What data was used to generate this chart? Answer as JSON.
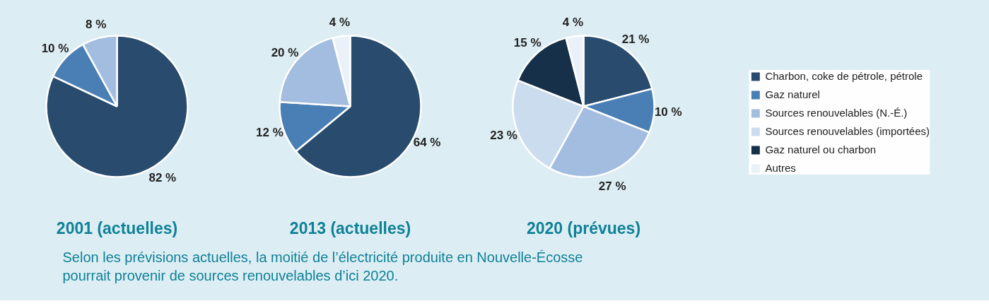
{
  "chart_data": [
    {
      "type": "pie",
      "title": "2001 (actuelles)",
      "categories": [
        null,
        null,
        null
      ],
      "values": [
        82,
        10,
        8
      ],
      "colors": [
        "#284b6e",
        "#4a7fb5",
        "#a3bde0"
      ],
      "value_labels": [
        "82 %",
        "10 %",
        "8 %"
      ],
      "legend": false,
      "annotations": [
        "Selon les prévisions actuelles, la moitié de l’électricité produite en Nouvelle-Écosse pourrait provenir de sources renouvelables d’ici 2020."
      ]
    },
    {
      "type": "pie",
      "title": "2013 (actuelles)",
      "categories": [
        null,
        null,
        null,
        null
      ],
      "values": [
        64,
        12,
        20,
        4
      ],
      "colors": [
        "#284b6e",
        "#4a7fb5",
        "#a3bde0",
        "#eaf1f8"
      ],
      "value_labels": [
        "64 %",
        "12 %",
        "20 %",
        "4 %"
      ],
      "legend": false
    },
    {
      "type": "pie",
      "title": "2020 (prévues)",
      "categories": [
        "Charbon, coke de pétrole, pétrole",
        "Gaz naturel",
        "Sources renouvelables (N.-É.)",
        "Sources renouvelables (importées)",
        "Gaz naturel ou charbon",
        "Autres"
      ],
      "values": [
        21,
        10,
        27,
        23,
        15,
        4
      ],
      "colors": [
        "#284b6e",
        "#4a7fb5",
        "#a3bde0",
        "#cbdcee",
        "#16304a",
        "#eaf1f8"
      ],
      "value_labels": [
        "21 %",
        "10 %",
        "27 %",
        "23 %",
        "15 %",
        "4 %"
      ],
      "legend": "right"
    }
  ]
}
